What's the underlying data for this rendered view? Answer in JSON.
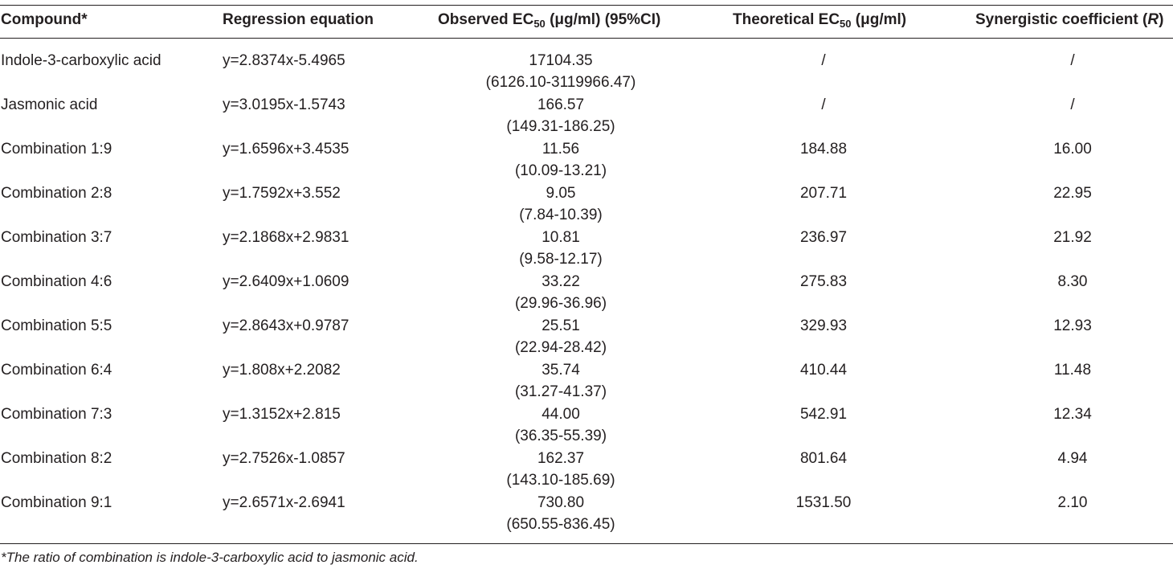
{
  "table": {
    "headers": [
      {
        "text": "Compound*"
      },
      {
        "text": "Regression equation"
      },
      {
        "pre": "Observed EC",
        "sub": "50",
        "post": " (μg/ml) (95%CI)"
      },
      {
        "pre": "Theoretical EC",
        "sub": "50",
        "post": " (μg/ml)"
      },
      {
        "pre": "Synergistic coefficient (",
        "ital": "R",
        "post": ")"
      }
    ],
    "rows": [
      {
        "compound": "Indole-3-carboxylic acid",
        "equation": "y=2.8374x-5.4965",
        "observed": "17104.35",
        "ci": "(6126.10-3119966.47)",
        "theoretical": "/",
        "coefficient": "/"
      },
      {
        "compound": "Jasmonic acid",
        "equation": "y=3.0195x-1.5743",
        "observed": "166.57",
        "ci": "(149.31-186.25)",
        "theoretical": "/",
        "coefficient": "/"
      },
      {
        "compound": "Combination 1:9",
        "equation": "y=1.6596x+3.4535",
        "observed": "11.56",
        "ci": "(10.09-13.21)",
        "theoretical": "184.88",
        "coefficient": "16.00"
      },
      {
        "compound": "Combination 2:8",
        "equation": "y=1.7592x+3.552",
        "observed": "9.05",
        "ci": "(7.84-10.39)",
        "theoretical": "207.71",
        "coefficient": "22.95"
      },
      {
        "compound": "Combination 3:7",
        "equation": "y=2.1868x+2.9831",
        "observed": "10.81",
        "ci": "(9.58-12.17)",
        "theoretical": "236.97",
        "coefficient": "21.92"
      },
      {
        "compound": "Combination 4:6",
        "equation": "y=2.6409x+1.0609",
        "observed": "33.22",
        "ci": "(29.96-36.96)",
        "theoretical": "275.83",
        "coefficient": "8.30"
      },
      {
        "compound": "Combination 5:5",
        "equation": "y=2.8643x+0.9787",
        "observed": "25.51",
        "ci": "(22.94-28.42)",
        "theoretical": "329.93",
        "coefficient": "12.93"
      },
      {
        "compound": "Combination 6:4",
        "equation": "y=1.808x+2.2082",
        "observed": "35.74",
        "ci": "(31.27-41.37)",
        "theoretical": "410.44",
        "coefficient": "11.48"
      },
      {
        "compound": "Combination 7:3",
        "equation": "y=1.3152x+2.815",
        "observed": "44.00",
        "ci": "(36.35-55.39)",
        "theoretical": "542.91",
        "coefficient": "12.34"
      },
      {
        "compound": "Combination 8:2",
        "equation": "y=2.7526x-1.0857",
        "observed": "162.37",
        "ci": "(143.10-185.69)",
        "theoretical": "801.64",
        "coefficient": "4.94"
      },
      {
        "compound": "Combination 9:1",
        "equation": "y=2.6571x-2.6941",
        "observed": "730.80",
        "ci": "(650.55-836.45)",
        "theoretical": "1531.50",
        "coefficient": "2.10"
      }
    ]
  },
  "footnote": "*The ratio of combination is indole-3-carboxylic acid to jasmonic acid.",
  "colors": {
    "text": "#231f20",
    "rule": "#231f20",
    "background": "#ffffff"
  }
}
